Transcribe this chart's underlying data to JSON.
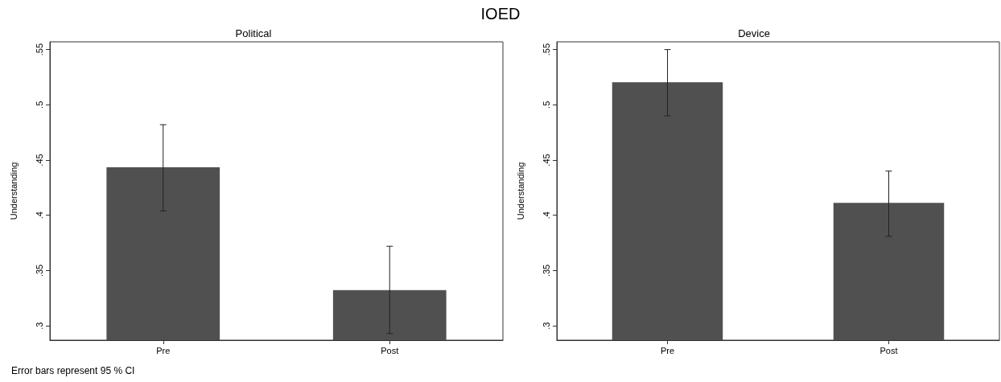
{
  "chart_data": [
    {
      "type": "bar",
      "title": "IOED",
      "subtitle": "Political",
      "ylabel": "Understanding",
      "categories": [
        "Pre",
        "Post"
      ],
      "series": [
        {
          "color": "#505050",
          "values": [
            0.4435,
            0.3323
          ],
          "errors": [
            [
              0.404,
              0.482
            ],
            [
              0.293,
              0.372
            ]
          ]
        }
      ],
      "ylim": [
        0.287,
        0.557
      ],
      "yticks": [
        {
          "value": 0.3,
          "label": ".3"
        },
        {
          "value": 0.35,
          "label": ".35"
        },
        {
          "value": 0.4,
          "label": ".4"
        },
        {
          "value": 0.45,
          "label": ".45"
        },
        {
          "value": 0.5,
          "label": ".5"
        },
        {
          "value": 0.55,
          "label": ".55"
        }
      ],
      "grid": false,
      "annotations": [
        "Error bars represent 95 % CI"
      ]
    },
    {
      "type": "bar",
      "subtitle": "Device",
      "ylabel": "Understanding",
      "categories": [
        "Pre",
        "Post"
      ],
      "series": [
        {
          "color": "#505050",
          "values": [
            0.5204,
            0.4112
          ],
          "errors": [
            [
              0.49,
              0.55
            ],
            [
              0.381,
              0.44
            ]
          ]
        }
      ],
      "ylim": [
        0.287,
        0.557
      ],
      "yticks": [
        {
          "value": 0.3,
          "label": ".3"
        },
        {
          "value": 0.35,
          "label": ".35"
        },
        {
          "value": 0.4,
          "label": ".4"
        },
        {
          "value": 0.45,
          "label": ".45"
        },
        {
          "value": 0.5,
          "label": ".5"
        },
        {
          "value": 0.55,
          "label": ".55"
        }
      ],
      "grid": false
    }
  ]
}
